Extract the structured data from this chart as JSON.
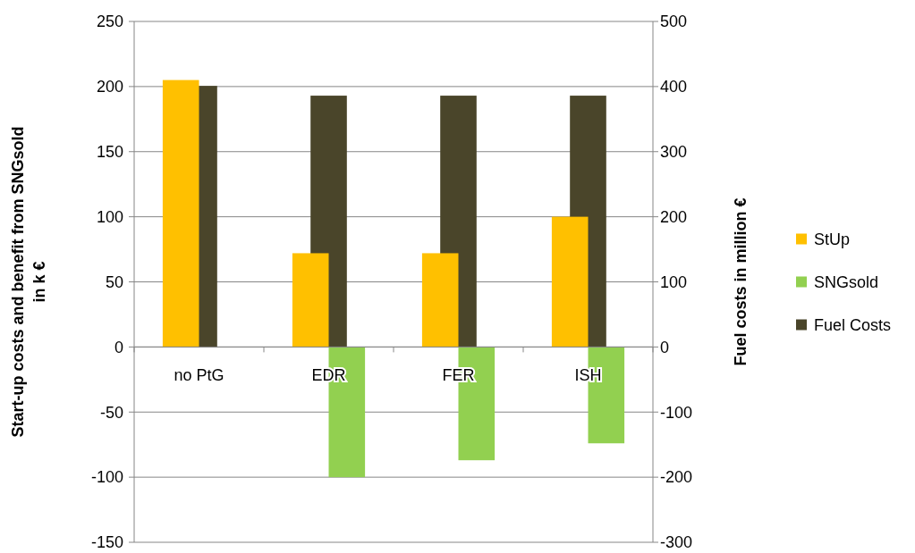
{
  "chart_data": {
    "type": "bar",
    "categories": [
      "no PtG",
      "EDR",
      "FER",
      "ISH"
    ],
    "series": [
      {
        "name": "StUp",
        "color": "#ffc000",
        "values": [
          205,
          72,
          72,
          100
        ]
      },
      {
        "name": "SNGsold",
        "color": "#92d050",
        "values": [
          0,
          -100,
          -87,
          -74
        ]
      },
      {
        "name": "Fuel Costs",
        "color": "#4a452a",
        "values": [
          401,
          386,
          386,
          386
        ],
        "axis": "y2"
      }
    ],
    "ylabel": "Start-up costs and benefit from SNGsold in k €",
    "y2label": "Fuel costs in million €",
    "ylim": [
      -150,
      250
    ],
    "yticks": [
      -150,
      -100,
      -50,
      0,
      50,
      100,
      150,
      200,
      250
    ],
    "y2lim": [
      -300,
      500
    ],
    "y2ticks": [
      -300,
      -200,
      -100,
      0,
      100,
      200,
      300,
      400,
      500
    ],
    "grid": "y",
    "legend": "right"
  }
}
